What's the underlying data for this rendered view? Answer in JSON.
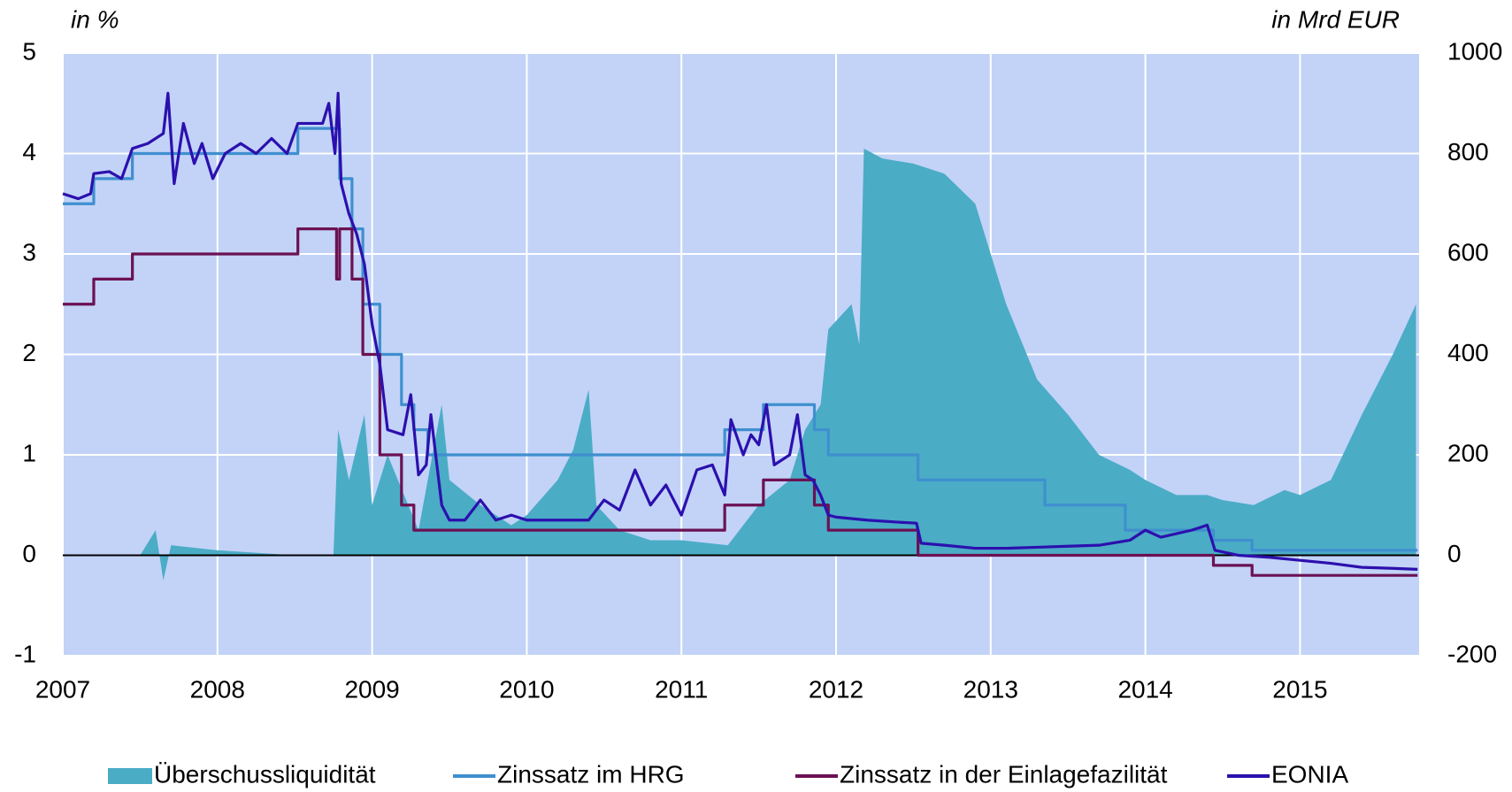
{
  "chart_data": {
    "type": "line",
    "ylabel": "in %",
    "y2label": "in Mrd EUR",
    "xlim": [
      2007,
      2015.77
    ],
    "xticks": [
      2007,
      2008,
      2009,
      2010,
      2011,
      2012,
      2013,
      2014,
      2015
    ],
    "ylim": [
      -1,
      5
    ],
    "yticks": [
      -1,
      0,
      1,
      2,
      3,
      4,
      5
    ],
    "y2lim": [
      -200,
      1000
    ],
    "y2ticks": [
      -200,
      0,
      200,
      400,
      600,
      800,
      1000
    ],
    "grid": true,
    "legend": "bottom",
    "series": [
      {
        "name": "Überschussliquidität",
        "type": "area",
        "axis": "y2",
        "color": "#4bacc6",
        "x": [
          2007.0,
          2007.5,
          2007.6,
          2007.65,
          2007.7,
          2008.0,
          2008.5,
          2008.75,
          2008.78,
          2008.85,
          2008.95,
          2009.0,
          2009.1,
          2009.3,
          2009.45,
          2009.5,
          2009.7,
          2009.9,
          2010.0,
          2010.2,
          2010.3,
          2010.4,
          2010.45,
          2010.6,
          2010.8,
          2011.0,
          2011.3,
          2011.5,
          2011.7,
          2011.8,
          2011.9,
          2011.95,
          2012.1,
          2012.15,
          2012.18,
          2012.3,
          2012.5,
          2012.7,
          2012.9,
          2013.0,
          2013.1,
          2013.3,
          2013.5,
          2013.7,
          2013.9,
          2014.0,
          2014.2,
          2014.4,
          2014.5,
          2014.7,
          2014.9,
          2015.0,
          2015.2,
          2015.4,
          2015.6,
          2015.75
        ],
        "values": [
          0,
          0,
          50,
          -50,
          20,
          10,
          0,
          0,
          250,
          150,
          280,
          100,
          200,
          50,
          300,
          150,
          100,
          60,
          80,
          150,
          210,
          330,
          100,
          50,
          30,
          30,
          20,
          100,
          150,
          250,
          300,
          450,
          500,
          420,
          810,
          790,
          780,
          760,
          700,
          600,
          500,
          350,
          280,
          200,
          170,
          150,
          120,
          120,
          110,
          100,
          130,
          120,
          150,
          280,
          400,
          500
        ]
      },
      {
        "name": "Zinssatz im HRG",
        "type": "line",
        "axis": "y",
        "color": "#3f8fcf",
        "x": [
          2007,
          2007.2,
          2007.2,
          2007.45,
          2007.45,
          2008.52,
          2008.52,
          2008.79,
          2008.79,
          2008.87,
          2008.87,
          2008.94,
          2008.94,
          2009.05,
          2009.05,
          2009.19,
          2009.19,
          2009.27,
          2009.27,
          2009.36,
          2009.36,
          2011.28,
          2011.28,
          2011.53,
          2011.53,
          2011.86,
          2011.86,
          2011.95,
          2011.95,
          2012.53,
          2012.53,
          2013.35,
          2013.35,
          2013.87,
          2013.87,
          2014.44,
          2014.44,
          2014.69,
          2014.69,
          2015.76
        ],
        "values": [
          3.5,
          3.5,
          3.75,
          3.75,
          4,
          4,
          4.25,
          4.25,
          3.75,
          3.75,
          3.25,
          3.25,
          2.5,
          2.5,
          2,
          2,
          1.5,
          1.5,
          1.25,
          1.25,
          1,
          1,
          1.25,
          1.25,
          1.5,
          1.5,
          1.25,
          1.25,
          1,
          1,
          0.75,
          0.75,
          0.5,
          0.5,
          0.25,
          0.25,
          0.15,
          0.15,
          0.05,
          0.05
        ]
      },
      {
        "name": "Zinssatz in der Einlagefazilität",
        "type": "line",
        "axis": "y",
        "color": "#6b1153",
        "x": [
          2007,
          2007.2,
          2007.2,
          2007.45,
          2007.45,
          2008.52,
          2008.52,
          2008.77,
          2008.77,
          2008.79,
          2008.79,
          2008.87,
          2008.87,
          2008.94,
          2008.94,
          2009.05,
          2009.05,
          2009.19,
          2009.19,
          2009.27,
          2009.27,
          2011.28,
          2011.28,
          2011.53,
          2011.53,
          2011.86,
          2011.86,
          2011.95,
          2011.95,
          2012.53,
          2012.53,
          2014.44,
          2014.44,
          2014.69,
          2014.69,
          2015.76
        ],
        "values": [
          2.5,
          2.5,
          2.75,
          2.75,
          3,
          3,
          3.25,
          3.25,
          2.75,
          2.75,
          3.25,
          3.25,
          2.75,
          2.75,
          2,
          2,
          1,
          1,
          0.5,
          0.5,
          0.25,
          0.25,
          0.5,
          0.5,
          0.75,
          0.75,
          0.5,
          0.5,
          0.25,
          0.25,
          0,
          0,
          -0.1,
          -0.1,
          -0.2,
          -0.2
        ]
      },
      {
        "name": "EONIA",
        "type": "line",
        "axis": "y",
        "color": "#2c10ae",
        "x": [
          2007.0,
          2007.1,
          2007.18,
          2007.2,
          2007.3,
          2007.38,
          2007.45,
          2007.55,
          2007.65,
          2007.68,
          2007.72,
          2007.78,
          2007.85,
          2007.9,
          2007.97,
          2008.05,
          2008.15,
          2008.25,
          2008.35,
          2008.45,
          2008.52,
          2008.6,
          2008.68,
          2008.72,
          2008.76,
          2008.78,
          2008.8,
          2008.85,
          2008.9,
          2008.95,
          2009.0,
          2009.05,
          2009.1,
          2009.2,
          2009.25,
          2009.3,
          2009.35,
          2009.38,
          2009.45,
          2009.5,
          2009.6,
          2009.7,
          2009.8,
          2009.9,
          2010.0,
          2010.2,
          2010.4,
          2010.5,
          2010.6,
          2010.7,
          2010.8,
          2010.9,
          2011.0,
          2011.1,
          2011.2,
          2011.28,
          2011.32,
          2011.4,
          2011.45,
          2011.5,
          2011.55,
          2011.6,
          2011.7,
          2011.75,
          2011.8,
          2011.85,
          2011.9,
          2011.95,
          2012.0,
          2012.2,
          2012.4,
          2012.52,
          2012.55,
          2012.7,
          2012.9,
          2013.1,
          2013.3,
          2013.5,
          2013.7,
          2013.9,
          2014.0,
          2014.1,
          2014.3,
          2014.4,
          2014.45,
          2014.6,
          2014.8,
          2015.0,
          2015.2,
          2015.4,
          2015.6,
          2015.76
        ],
        "values": [
          3.6,
          3.55,
          3.6,
          3.8,
          3.82,
          3.75,
          4.05,
          4.1,
          4.2,
          4.6,
          3.7,
          4.3,
          3.9,
          4.1,
          3.75,
          4.0,
          4.1,
          4.0,
          4.15,
          4.0,
          4.3,
          4.3,
          4.3,
          4.5,
          4.0,
          4.6,
          3.7,
          3.4,
          3.2,
          2.9,
          2.3,
          1.9,
          1.25,
          1.2,
          1.6,
          0.8,
          0.9,
          1.4,
          0.5,
          0.35,
          0.35,
          0.55,
          0.35,
          0.4,
          0.35,
          0.35,
          0.35,
          0.55,
          0.45,
          0.85,
          0.5,
          0.7,
          0.4,
          0.85,
          0.9,
          0.6,
          1.35,
          1.0,
          1.2,
          1.1,
          1.5,
          0.9,
          1.0,
          1.4,
          0.8,
          0.75,
          0.6,
          0.4,
          0.38,
          0.35,
          0.33,
          0.32,
          0.12,
          0.1,
          0.07,
          0.07,
          0.08,
          0.09,
          0.1,
          0.15,
          0.25,
          0.18,
          0.25,
          0.3,
          0.05,
          0.0,
          -0.02,
          -0.05,
          -0.08,
          -0.12,
          -0.13,
          -0.14
        ]
      }
    ]
  }
}
